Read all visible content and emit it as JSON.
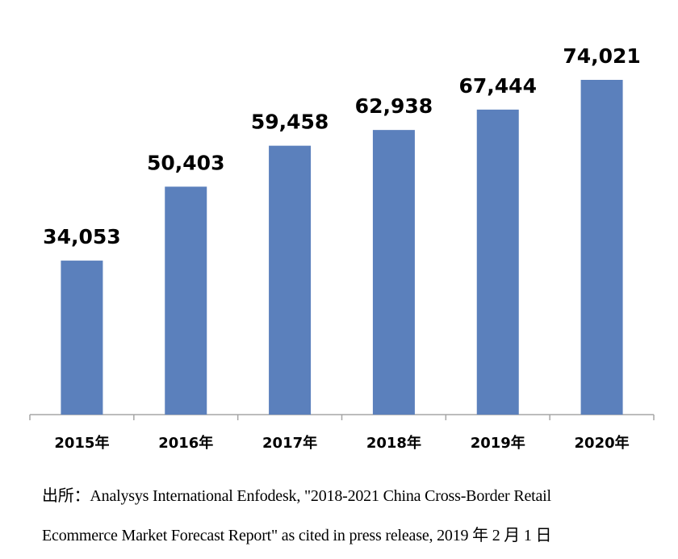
{
  "chart_data": {
    "type": "bar",
    "categories": [
      "2015年",
      "2016年",
      "2017年",
      "2018年",
      "2019年",
      "2020年"
    ],
    "values": [
      34053,
      50403,
      59458,
      62938,
      67444,
      74021
    ],
    "value_labels": [
      "34,053",
      "50,403",
      "59,458",
      "62,938",
      "67,444",
      "74,021"
    ],
    "title": "",
    "xlabel": "",
    "ylabel": "",
    "ylim": [
      0,
      80000
    ],
    "grid": false,
    "legend": "none",
    "colors": {
      "bar": "#5b80bc",
      "axis": "#a6a6a6"
    }
  },
  "source": {
    "line1": "出所：Analysys International Enfodesk, \"2018-2021 China Cross-Border Retail",
    "line2": "Ecommerce Market Forecast Report\" as cited in press release, 2019 年 2 月 1 日"
  }
}
